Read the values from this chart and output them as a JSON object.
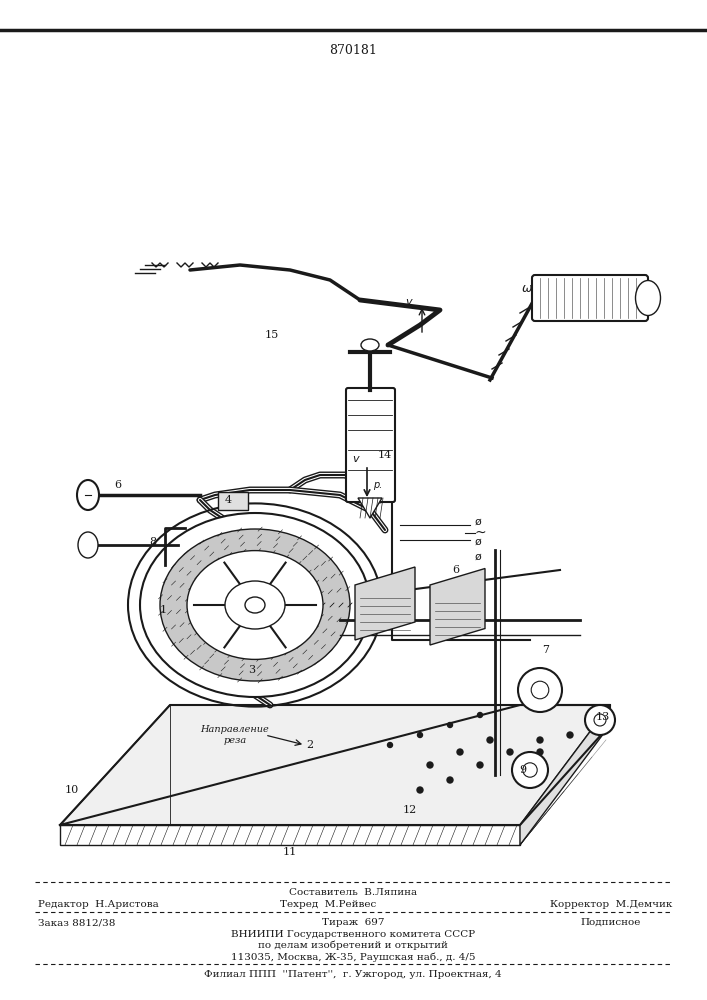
{
  "patent_number": "870181",
  "bg_color": "#ffffff",
  "line_color": "#1a1a1a",
  "footer": {
    "l1c": "Составитель  В.Ляпина",
    "l2l": "Редактор  Н.Аристова",
    "l2c": "Техред  М.Рейвес",
    "l2r": "Корректор  М.Демчик",
    "l3l": "Заказ 8812/38",
    "l3c": "Тираж  697",
    "l3r": "Подписное",
    "l4": "ВНИИПИ Государственного комитета СССР",
    "l5": "по делам изобретений и открытий",
    "l6": "113035, Москва, Ж-35, Раушская наб., д. 4/5",
    "l7": "Филиал ППП  ''Патент'',  г. Ужгород, ул. Проектная, 4"
  }
}
